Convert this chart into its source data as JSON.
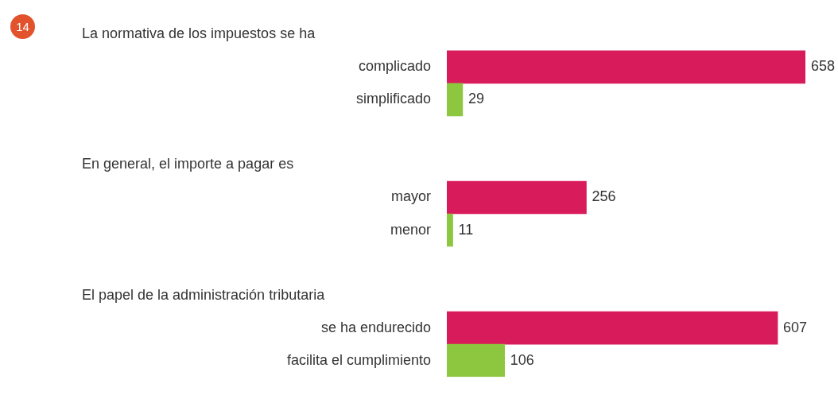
{
  "chart_data": {
    "type": "bar",
    "orientation": "horizontal",
    "annotations": [
      "14",
      "La normativa de los impuestos se ha",
      "En general, el importe a pagar es",
      "El papel de la administración tributaria"
    ],
    "categories": [
      null,
      "complicado",
      "simplificado",
      null,
      null,
      "mayor",
      "menor",
      null,
      null,
      "se ha endurecido",
      "facilita el cumplimiento"
    ],
    "values": [
      null,
      658,
      29,
      null,
      null,
      256,
      11,
      null,
      null,
      607,
      106
    ],
    "colors": [
      "#d81b5a",
      "#d81b5a",
      "#8dc63f",
      "#d81b5a",
      "#d81b5a",
      "#d81b5a",
      "#8dc63f",
      "#d81b5a",
      "#d81b5a",
      "#d81b5a",
      "#8dc63f"
    ],
    "xlim": [
      0,
      658
    ],
    "tick_labels": "y",
    "data_labels": true
  }
}
